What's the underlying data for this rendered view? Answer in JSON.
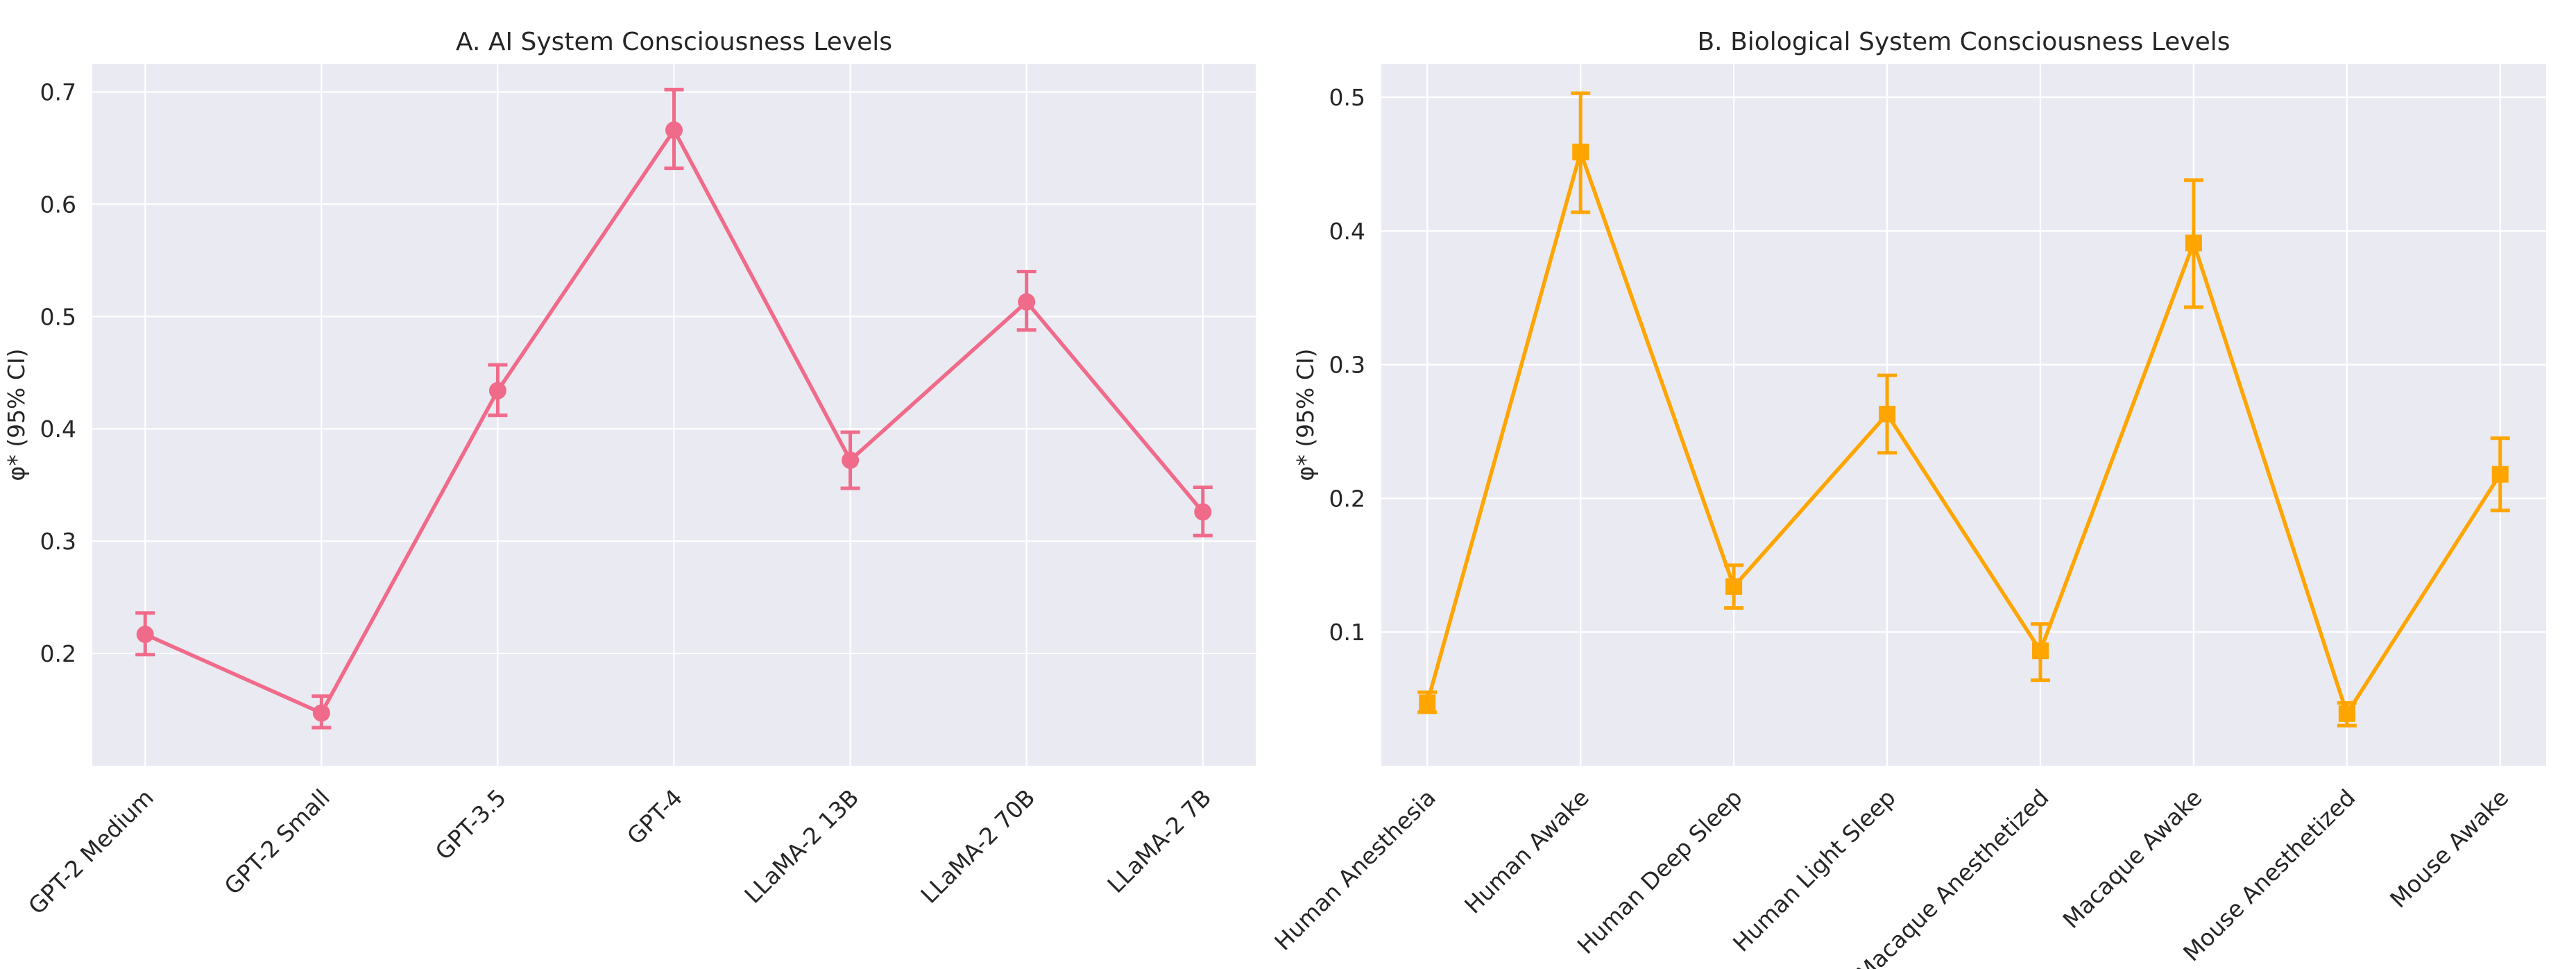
{
  "chart_data": [
    {
      "type": "line",
      "subtype": "errorbar",
      "title": "A. AI System Consciousness Levels",
      "xlabel": "",
      "ylabel": "φ* (95% CI)",
      "categories": [
        "GPT-2 Medium",
        "GPT-2 Small",
        "GPT-3.5",
        "GPT-4",
        "LLaMA-2 13B",
        "LLaMA-2 70B",
        "LLaMA-2 7B"
      ],
      "series": [
        {
          "name": "φ*",
          "values": [
            0.217,
            0.147,
            0.434,
            0.666,
            0.372,
            0.513,
            0.326
          ],
          "ci_lower": [
            0.199,
            0.134,
            0.412,
            0.632,
            0.347,
            0.488,
            0.305
          ],
          "ci_upper": [
            0.236,
            0.162,
            0.457,
            0.702,
            0.397,
            0.54,
            0.348
          ],
          "color": "#f06b8a",
          "marker": "circle"
        }
      ],
      "ylim": [
        0.1,
        0.725
      ],
      "yticks": [
        0.2,
        0.3,
        0.4,
        0.5,
        0.6,
        0.7
      ],
      "ytick_labels": [
        "0.2",
        "0.3",
        "0.4",
        "0.5",
        "0.6",
        "0.7"
      ],
      "grid": true,
      "legend": "none"
    },
    {
      "type": "line",
      "subtype": "errorbar",
      "title": "B. Biological System Consciousness Levels",
      "xlabel": "",
      "ylabel": "φ* (95% CI)",
      "categories": [
        "Human Anesthesia",
        "Human Awake",
        "Human Deep Sleep",
        "Human Light Sleep",
        "Macaque Anesthetized",
        "Macaque Awake",
        "Mouse Anesthetized",
        "Mouse Awake"
      ],
      "series": [
        {
          "name": "φ*",
          "values": [
            0.047,
            0.459,
            0.134,
            0.263,
            0.086,
            0.391,
            0.039,
            0.218
          ],
          "ci_lower": [
            0.04,
            0.414,
            0.118,
            0.234,
            0.064,
            0.343,
            0.03,
            0.191
          ],
          "ci_upper": [
            0.055,
            0.503,
            0.15,
            0.292,
            0.106,
            0.438,
            0.047,
            0.245
          ],
          "color": "#ffa500",
          "marker": "square"
        }
      ],
      "ylim": [
        0.0,
        0.525
      ],
      "yticks": [
        0.1,
        0.2,
        0.3,
        0.4,
        0.5
      ],
      "ytick_labels": [
        "0.1",
        "0.2",
        "0.3",
        "0.4",
        "0.5"
      ],
      "grid": true,
      "legend": "none"
    }
  ]
}
